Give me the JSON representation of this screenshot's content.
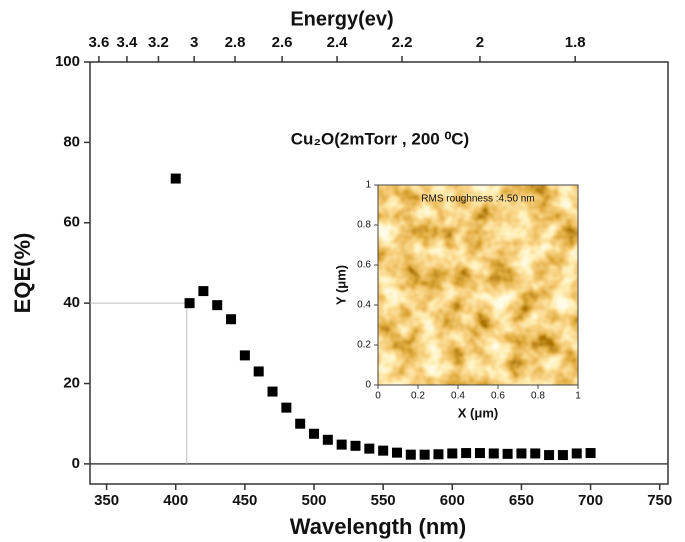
{
  "chart_data": {
    "type": "scatter",
    "xlabel": "Wavelength (nm)",
    "ylabel": "EQE(%)",
    "x2label": "Energy(ev)",
    "annotation": "Cu₂O(2mTorr , 200 ⁰C)",
    "x": [
      400,
      410,
      420,
      430,
      440,
      450,
      460,
      470,
      480,
      490,
      500,
      510,
      520,
      530,
      540,
      550,
      560,
      570,
      580,
      590,
      600,
      610,
      620,
      630,
      640,
      650,
      660,
      670,
      680,
      690,
      700
    ],
    "values": [
      71,
      40,
      43,
      39.5,
      36,
      27,
      23,
      18,
      14,
      10,
      7.5,
      6,
      4.8,
      4.5,
      3.8,
      3.3,
      2.8,
      2.3,
      2.3,
      2.4,
      2.6,
      2.7,
      2.7,
      2.6,
      2.5,
      2.6,
      2.6,
      2.2,
      2.2,
      2.6,
      2.7
    ],
    "color": "#000000",
    "xlim": [
      338,
      756
    ],
    "xticks": [
      350,
      400,
      450,
      500,
      550,
      600,
      650,
      700,
      750
    ],
    "ylim": [
      -5,
      100
    ],
    "yticks": [
      0,
      20,
      40,
      60,
      80,
      100
    ],
    "x2ticks": [
      3.6,
      3.4,
      3.2,
      3,
      2.8,
      2.6,
      2.4,
      2.2,
      2,
      1.8
    ],
    "reference_point": {
      "x": 408,
      "y": 40
    },
    "inset": {
      "text": "RMS roughness :4.50 nm",
      "xlabel": "X (μm)",
      "ylabel": "Y (μm)",
      "xlim": [
        0,
        1
      ],
      "ylim": [
        0,
        1
      ],
      "xticks": [
        0,
        0.2,
        0.4,
        0.6,
        0.8,
        1
      ],
      "yticks": [
        0,
        0.2,
        0.4,
        0.6,
        0.8,
        1
      ]
    }
  }
}
